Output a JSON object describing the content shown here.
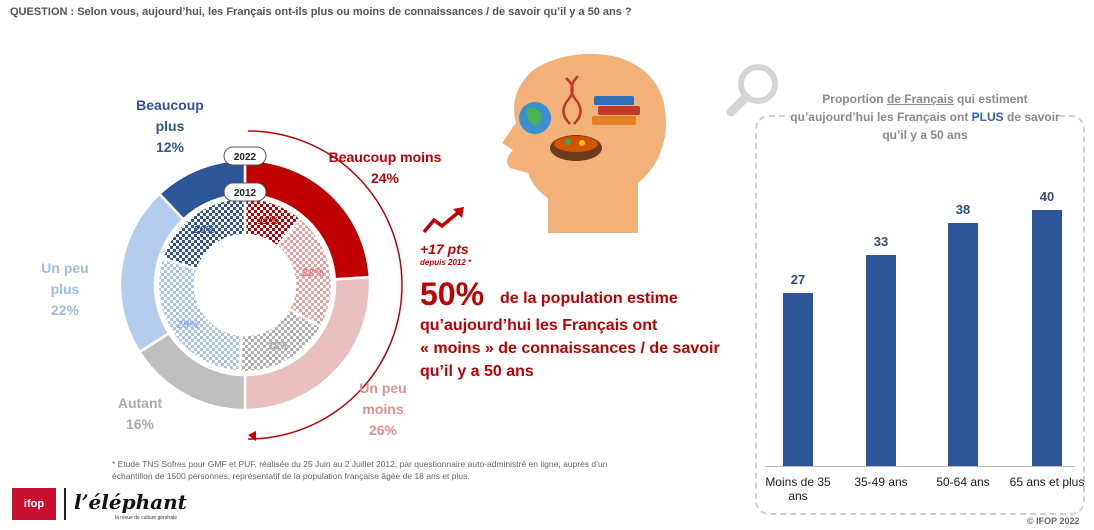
{
  "question": "QUESTION : Selon vous, aujourd’hui, les Français ont-ils plus ou moins de connaissances / de savoir qu’il y a 50 ans ?",
  "donut": {
    "year_outer": "2022",
    "year_inner": "2012",
    "labels": {
      "beaucoup_plus": [
        "Beaucoup",
        "plus",
        "12%"
      ],
      "beaucoup_moins": [
        "Beaucoup moins",
        "24%"
      ],
      "un_peu_plus": [
        "Un peu",
        "plus",
        "22%"
      ],
      "autant": [
        "Autant",
        "16%"
      ],
      "un_peu_moins": [
        "Un peu",
        "moins",
        "26%"
      ]
    }
  },
  "highlight": {
    "delta": "+17 pts",
    "delta_sub": "depuis 2012 *",
    "big": "50%",
    "line1": "de la population estime",
    "line2": "qu’aujourd’hui les Français ont",
    "line3": "« moins » de connaissances / de savoir",
    "line4": "qu’il y a 50 ans"
  },
  "footnote": {
    "line1": "* Etude TNS Sofres pour GMF et PUF, réalisée du 25 Juin au 2 Juillet 2012, par questionnaire auto-administré en ligne, auprès d’un",
    "line2": "échantillon de 1500 personnes, représentatif de la population française âgée de 18 ans et plus."
  },
  "logos": {
    "ifop": "ifop",
    "elephant": "l’éléphant",
    "elephant_sub": "la revue de culture générale"
  },
  "copyright": "© IFOP 2022",
  "panel": {
    "title_pre": "Proportion ",
    "title_underline": "de Français",
    "title_mid": " qui estiment qu’aujourd’hui les Français ont ",
    "title_plus": "PLUS",
    "title_post": " de savoir qu’il y a 50 ans"
  },
  "chart_data": [
    {
      "type": "pie",
      "ring": "2022",
      "categories": [
        "Beaucoup moins",
        "Un peu moins",
        "Autant",
        "Un peu plus",
        "Beaucoup plus"
      ],
      "values": [
        24,
        26,
        16,
        22,
        12
      ],
      "colors": [
        "#c00000",
        "#eabfbf",
        "#bfbfbf",
        "#b4cdef",
        "#2e5597"
      ]
    },
    {
      "type": "pie",
      "ring": "2012",
      "categories": [
        "Beaucoup moins",
        "Un peu moins",
        "Autant",
        "Un peu plus",
        "Beaucoup plus"
      ],
      "values": [
        11,
        22,
        18,
        29,
        20
      ],
      "value_labels": [
        "11%",
        "22%",
        "18%",
        "29%",
        "20%"
      ],
      "colors": [
        "#c00000",
        "#e08a8a",
        "#a6a6a6",
        "#9dbdea",
        "#2e5597"
      ]
    },
    {
      "type": "bar",
      "categories": [
        "Moins de 35 ans",
        "35-49 ans",
        "50-64 ans",
        "65 ans et plus"
      ],
      "values": [
        27,
        33,
        38,
        40
      ],
      "ylim": [
        0,
        50
      ],
      "color": "#2e5597"
    }
  ]
}
